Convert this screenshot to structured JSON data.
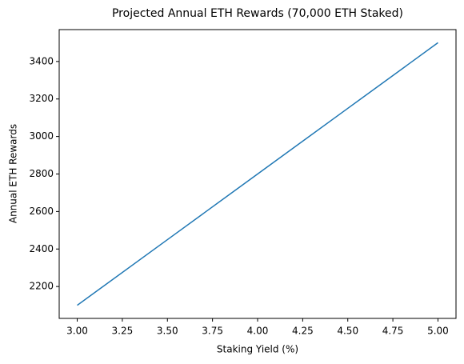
{
  "chart_data": {
    "type": "line",
    "title": "Projected Annual ETH Rewards (70,000 ETH Staked)",
    "x_label": "Staking Yield (%)",
    "y_label": "Annual ETH Rewards",
    "x": [
      3.0,
      3.5,
      4.0,
      4.5,
      5.0
    ],
    "series": [
      {
        "name": "Annual ETH Rewards",
        "color": "#1f77b4",
        "values": [
          2100,
          2450,
          2800,
          3150,
          3500
        ]
      }
    ],
    "xlim": [
      2.9,
      5.1
    ],
    "ylim": [
      2030,
      3570
    ],
    "xticks": [
      {
        "value": 3.0,
        "label": "3.00"
      },
      {
        "value": 3.25,
        "label": "3.25"
      },
      {
        "value": 3.5,
        "label": "3.50"
      },
      {
        "value": 3.75,
        "label": "3.75"
      },
      {
        "value": 4.0,
        "label": "4.00"
      },
      {
        "value": 4.25,
        "label": "4.25"
      },
      {
        "value": 4.5,
        "label": "4.50"
      },
      {
        "value": 4.75,
        "label": "4.75"
      },
      {
        "value": 5.0,
        "label": "5.00"
      }
    ],
    "yticks": [
      2200,
      2400,
      2600,
      2800,
      3000,
      3200,
      3400
    ],
    "grid": false
  }
}
